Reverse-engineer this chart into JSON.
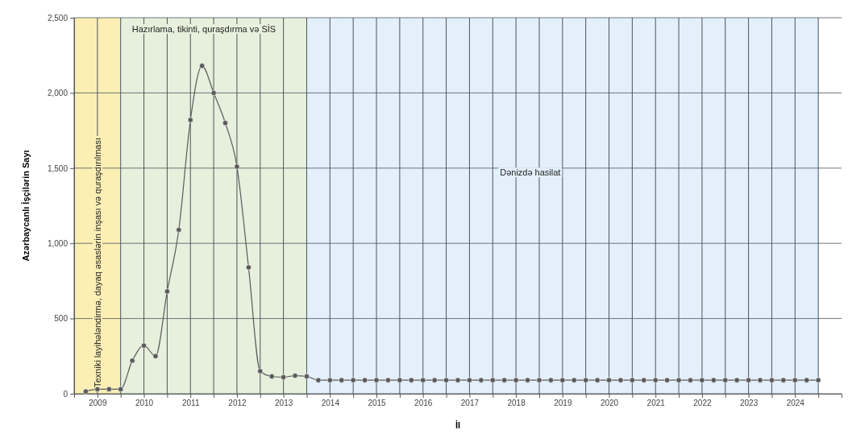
{
  "chart_data": {
    "type": "line",
    "xlabel": "İl",
    "ylabel": "Azərbaycanlı İşçilərin Sayı",
    "x": [
      2009.25,
      2009.5,
      2009.75,
      2010,
      2010.25,
      2010.5,
      2010.75,
      2011,
      2011.25,
      2011.5,
      2011.75,
      2012,
      2012.25,
      2012.5,
      2012.75,
      2013,
      2013.25,
      2013.5,
      2013.75,
      2014,
      2014.25,
      2014.5,
      2014.75,
      2015,
      2015.25,
      2015.5,
      2015.75,
      2016,
      2016.25,
      2016.5,
      2016.75,
      2017,
      2017.25,
      2017.5,
      2017.75,
      2018,
      2018.25,
      2018.5,
      2018.75,
      2019,
      2019.25,
      2019.5,
      2019.75,
      2020,
      2020.25,
      2020.5,
      2020.75,
      2021,
      2021.25,
      2021.5,
      2021.75,
      2022,
      2022.25,
      2022.5,
      2022.75,
      2023,
      2023.25,
      2023.5,
      2023.75,
      2024,
      2024.25,
      2024.5,
      2024.75,
      2025
    ],
    "series": [
      {
        "color": "#5a5a5a",
        "values": [
          15,
          30,
          30,
          30,
          220,
          320,
          250,
          680,
          1090,
          1820,
          2180,
          2000,
          1800,
          1510,
          840,
          150,
          115,
          110,
          120,
          115,
          90,
          90,
          90,
          90,
          90,
          90,
          90,
          90,
          90,
          90,
          90,
          90,
          90,
          90,
          90,
          90,
          90,
          90,
          90,
          90,
          90,
          90,
          90,
          90,
          90,
          90,
          90,
          90,
          90,
          90,
          90,
          90,
          90,
          90,
          90,
          90,
          90,
          90,
          90,
          90,
          90,
          90,
          90,
          90
        ]
      }
    ],
    "xlim": [
      2009,
      2025.5
    ],
    "xticks": [
      {
        "value": 2009,
        "label": null
      },
      {
        "value": 2009.5,
        "label": "2009"
      },
      {
        "value": 2010,
        "label": null
      },
      {
        "value": 2010.5,
        "label": "2010"
      },
      {
        "value": 2011,
        "label": null
      },
      {
        "value": 2011.5,
        "label": "2011"
      },
      {
        "value": 2012,
        "label": null
      },
      {
        "value": 2012.5,
        "label": "2012"
      },
      {
        "value": 2013,
        "label": null
      },
      {
        "value": 2013.5,
        "label": "2013"
      },
      {
        "value": 2014,
        "label": null
      },
      {
        "value": 2014.5,
        "label": "2014"
      },
      {
        "value": 2015,
        "label": null
      },
      {
        "value": 2015.5,
        "label": "2015"
      },
      {
        "value": 2016,
        "label": null
      },
      {
        "value": 2016.5,
        "label": "2016"
      },
      {
        "value": 2017,
        "label": null
      },
      {
        "value": 2017.5,
        "label": "2017"
      },
      {
        "value": 2018,
        "label": null
      },
      {
        "value": 2018.5,
        "label": "2018"
      },
      {
        "value": 2019,
        "label": null
      },
      {
        "value": 2019.5,
        "label": "2019"
      },
      {
        "value": 2020,
        "label": null
      },
      {
        "value": 2020.5,
        "label": "2020"
      },
      {
        "value": 2021,
        "label": null
      },
      {
        "value": 2021.5,
        "label": "2021"
      },
      {
        "value": 2022,
        "label": null
      },
      {
        "value": 2022.5,
        "label": "2022"
      },
      {
        "value": 2023,
        "label": null
      },
      {
        "value": 2023.5,
        "label": "2023"
      },
      {
        "value": 2024,
        "label": null
      },
      {
        "value": 2024.5,
        "label": "2024"
      },
      {
        "value": 2025,
        "label": null
      }
    ],
    "ylim": [
      0,
      2500
    ],
    "yticks": [
      {
        "value": 0,
        "label": "0"
      },
      {
        "value": 500,
        "label": "500"
      },
      {
        "value": 1000,
        "label": "1,000"
      },
      {
        "value": 1500,
        "label": "1,500"
      },
      {
        "value": 2000,
        "label": "2,000"
      },
      {
        "value": 2500,
        "label": "2,500"
      }
    ],
    "grid": true,
    "marker": "circle",
    "line_style": "solid",
    "bands": [
      {
        "axis": "x",
        "from": 2009,
        "to": 2010,
        "label": "Texniki layihələndirmə, dayaq əsaslərin inşası və quraşdırılması",
        "color": "#fbefb4"
      },
      {
        "axis": "x",
        "from": 2010,
        "to": 2014,
        "label": "Hazırlama, tikinti, quraşdırma və SİS",
        "color": "#e6f0dc"
      },
      {
        "axis": "x",
        "from": 2014,
        "to": 2025,
        "label": "Dənizdə hasilat",
        "color": "#e3effa"
      }
    ]
  }
}
